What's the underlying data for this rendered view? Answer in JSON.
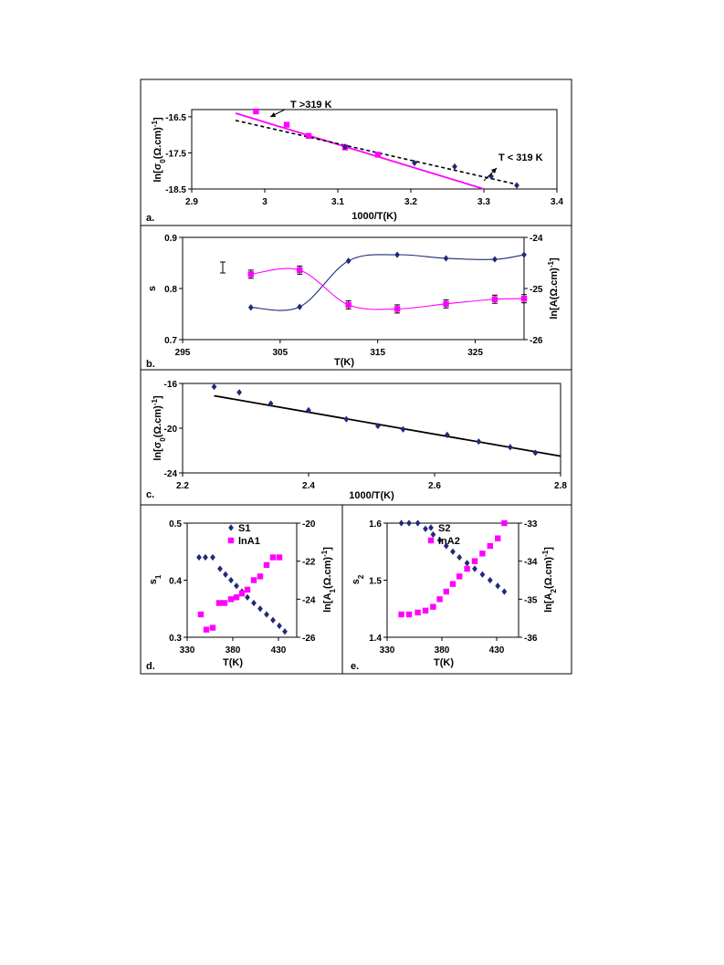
{
  "colors": {
    "navy": "#1f2a78",
    "magenta": "#ff00ff",
    "black": "#000000"
  },
  "chart_data": [
    {
      "panel_label": "a.",
      "type": "scatter",
      "xlabel": "1000/T(K)",
      "ylabel": "ln[σ0(Ω.cm)-1]",
      "xlim": [
        2.9,
        3.4
      ],
      "ylim": [
        -18.5,
        -16.3
      ],
      "xticks": [
        "2.9",
        "3",
        "3.1",
        "3.2",
        "3.3",
        "3.4"
      ],
      "yticks": [
        "-16.5",
        "-17.5",
        "-18.5"
      ],
      "series": [
        {
          "marker": "square",
          "color": "#ff00ff",
          "x": [
            2.988,
            3.03,
            3.06,
            3.11,
            3.155
          ],
          "y": [
            -16.35,
            -16.72,
            -17.03,
            -17.35,
            -17.55
          ]
        },
        {
          "marker": "diamond",
          "color": "#1f2a78",
          "x": [
            3.11,
            3.205,
            3.26,
            3.31,
            3.345
          ],
          "y": [
            -17.33,
            -17.78,
            -17.88,
            -18.15,
            -18.4
          ]
        }
      ],
      "fits": [
        {
          "style": "solid",
          "color": "#ff00ff",
          "x": [
            2.96,
            3.3
          ],
          "y": [
            -16.4,
            -18.5
          ]
        },
        {
          "style": "dashed",
          "color": "#000000",
          "x": [
            2.96,
            3.34
          ],
          "y": [
            -16.6,
            -18.35
          ]
        }
      ],
      "annotations": [
        "T >319 K",
        "T < 319 K"
      ]
    },
    {
      "panel_label": "b.",
      "type": "line",
      "xlabel": "T(K)",
      "ylabel": "s",
      "y2label": "ln[A(Ω.cm)-1]",
      "xlim": [
        295,
        330
      ],
      "ylim": [
        0.7,
        0.9
      ],
      "y2lim": [
        -26,
        -24
      ],
      "xticks": [
        "295",
        "305",
        "315",
        "325"
      ],
      "yticks": [
        "0.7",
        "0.8",
        "0.9"
      ],
      "y2ticks": [
        "-26",
        "-25",
        "-24"
      ],
      "series": [
        {
          "axis": "left",
          "marker": "diamond",
          "color": "#1f2a78",
          "x": [
            302,
            307,
            312,
            317,
            322,
            327,
            330
          ],
          "y": [
            0.763,
            0.764,
            0.854,
            0.866,
            0.859,
            0.857,
            0.866
          ]
        },
        {
          "axis": "right",
          "marker": "square",
          "color": "#ff00ff",
          "x": [
            302,
            307,
            312,
            317,
            322,
            327,
            330
          ],
          "y": [
            -24.72,
            -24.64,
            -25.32,
            -25.4,
            -25.3,
            -25.21,
            -25.2
          ],
          "err": [
            0.08,
            0.08,
            0.08,
            0.08,
            0.08,
            0.08,
            0.08
          ]
        }
      ]
    },
    {
      "panel_label": "c.",
      "type": "scatter",
      "xlabel": "1000/T(K)",
      "ylabel": "ln[σ0(Ω.cm)-1]",
      "xlim": [
        2.2,
        2.8
      ],
      "ylim": [
        -24,
        -16
      ],
      "xticks": [
        "2.2",
        "2.4",
        "2.6",
        "2.8"
      ],
      "yticks": [
        "-16",
        "-20",
        "-24"
      ],
      "series": [
        {
          "marker": "diamond",
          "color": "#1f2a78",
          "x": [
            2.25,
            2.29,
            2.34,
            2.4,
            2.46,
            2.51,
            2.55,
            2.62,
            2.67,
            2.72,
            2.76
          ],
          "y": [
            -16.3,
            -16.8,
            -17.8,
            -18.4,
            -19.2,
            -19.8,
            -20.1,
            -20.6,
            -21.2,
            -21.7,
            -22.2
          ]
        }
      ],
      "fits": [
        {
          "style": "solid",
          "color": "#000000",
          "x": [
            2.25,
            2.8
          ],
          "y": [
            -17.1,
            -22.5
          ]
        }
      ]
    },
    {
      "panel_label": "d.",
      "type": "scatter",
      "xlabel": "T(K)",
      "ylabel": "s1",
      "y2label": "ln[A1(Ω.cm)-1]",
      "xlim": [
        330,
        450
      ],
      "ylim": [
        0.3,
        0.5
      ],
      "y2lim": [
        -26,
        -20
      ],
      "xticks": [
        "330",
        "380",
        "430"
      ],
      "yticks": [
        "0.3",
        "0.4",
        "0.5"
      ],
      "y2ticks": [
        "-26",
        "-24",
        "-22",
        "-20"
      ],
      "series": [
        {
          "name": "S1",
          "axis": "left",
          "marker": "diamond",
          "color": "#1f2a78",
          "x": [
            343,
            350,
            358,
            366,
            372,
            378,
            384,
            390,
            396,
            403,
            410,
            417,
            424,
            431,
            437
          ],
          "y": [
            0.44,
            0.44,
            0.44,
            0.42,
            0.41,
            0.4,
            0.39,
            0.38,
            0.37,
            0.36,
            0.35,
            0.34,
            0.33,
            0.32,
            0.31
          ]
        },
        {
          "name": "lnA1",
          "axis": "right",
          "marker": "square",
          "color": "#ff00ff",
          "x": [
            345,
            351,
            358,
            365,
            371,
            378,
            384,
            390,
            396,
            403,
            410,
            417,
            424,
            431
          ],
          "y": [
            -24.8,
            -25.6,
            -25.5,
            -24.2,
            -24.2,
            -24.0,
            -23.9,
            -23.7,
            -23.5,
            -23.0,
            -22.8,
            -22.2,
            -21.8,
            -21.8
          ]
        }
      ]
    },
    {
      "panel_label": "e.",
      "type": "scatter",
      "xlabel": "T(K)",
      "ylabel": "s2",
      "y2label": "ln[A2(Ω.cm)-1]",
      "xlim": [
        330,
        450
      ],
      "ylim": [
        1.4,
        1.6
      ],
      "y2lim": [
        -36,
        -33
      ],
      "xticks": [
        "330",
        "380",
        "430"
      ],
      "yticks": [
        "1.4",
        "1.5",
        "1.6"
      ],
      "y2ticks": [
        "-36",
        "-35",
        "-34",
        "-33"
      ],
      "series": [
        {
          "name": "S2",
          "axis": "left",
          "marker": "diamond",
          "color": "#1f2a78",
          "x": [
            343,
            350,
            358,
            365,
            372,
            378,
            384,
            390,
            396,
            403,
            410,
            417,
            424,
            431,
            437
          ],
          "y": [
            1.6,
            1.6,
            1.6,
            1.59,
            1.58,
            1.57,
            1.56,
            1.55,
            1.54,
            1.53,
            1.52,
            1.51,
            1.5,
            1.49,
            1.48
          ]
        },
        {
          "name": "lnA2",
          "axis": "right",
          "marker": "square",
          "color": "#ff00ff",
          "x": [
            343,
            350,
            358,
            365,
            372,
            378,
            384,
            390,
            396,
            403,
            410,
            417,
            424,
            431,
            437
          ],
          "y": [
            -35.4,
            -35.4,
            -35.35,
            -35.3,
            -35.2,
            -35.0,
            -34.8,
            -34.6,
            -34.4,
            -34.2,
            -34.0,
            -33.8,
            -33.6,
            -33.4,
            -33.0
          ]
        }
      ]
    }
  ]
}
